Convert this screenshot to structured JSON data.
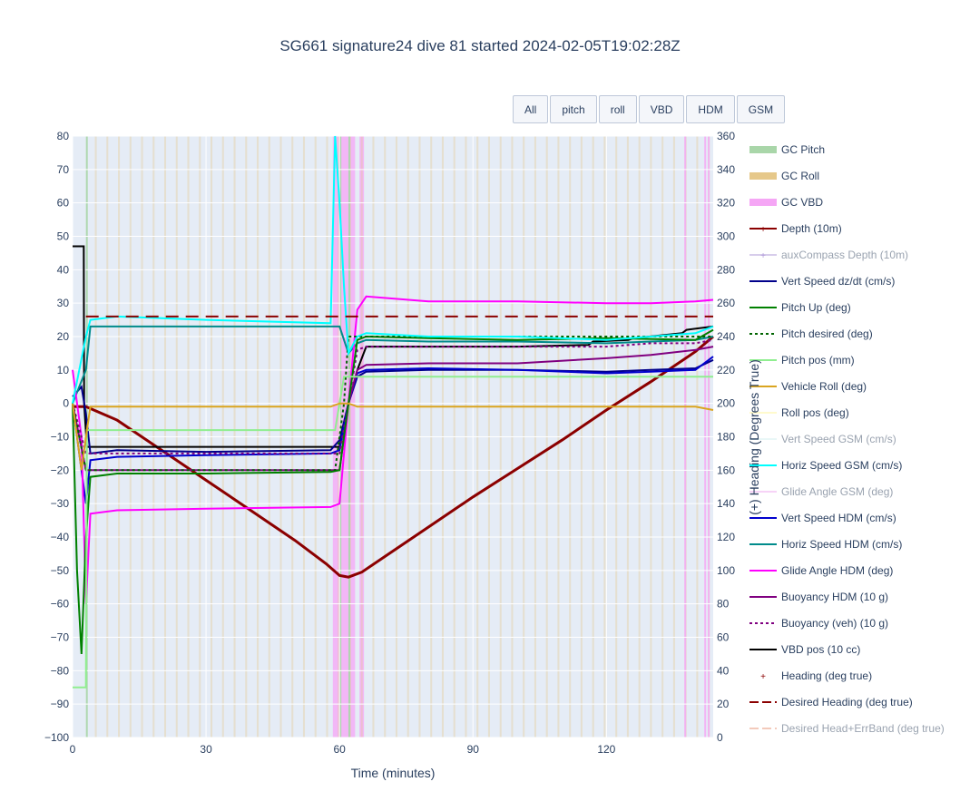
{
  "chart_title": "SG661 signature24 dive 81 started 2024-02-05T19:02:28Z",
  "buttons": [
    "All",
    "pitch",
    "roll",
    "VBD",
    "HDM",
    "GSM"
  ],
  "chart_data": {
    "type": "line",
    "title": "SG661 signature24 dive 81 started 2024-02-05T19:02:28Z",
    "xlabel": "Time (minutes)",
    "ylabel": "",
    "y2label": "(+) Heading (Degrees True)",
    "xlim": [
      0,
      144
    ],
    "ylim": [
      -100,
      80
    ],
    "y2lim": [
      0,
      360
    ],
    "xticks": [
      0,
      30,
      60,
      90,
      120
    ],
    "yticks": [
      -100,
      -90,
      -80,
      -70,
      -60,
      -50,
      -40,
      -30,
      -20,
      -10,
      0,
      10,
      20,
      30,
      40,
      50,
      60,
      70,
      80
    ],
    "y2ticks": [
      0,
      20,
      40,
      60,
      80,
      100,
      120,
      140,
      160,
      180,
      200,
      220,
      240,
      260,
      280,
      300,
      320,
      340,
      360
    ],
    "grid": true,
    "legend_position": "right",
    "legend": [
      {
        "name": "GC Pitch",
        "color": "#a9d6a9",
        "style": "band"
      },
      {
        "name": "GC Roll",
        "color": "#e6c88a",
        "style": "band"
      },
      {
        "name": "GC VBD",
        "color": "#f5a6f5",
        "style": "band"
      },
      {
        "name": "Depth (10m)",
        "color": "#8b0000",
        "style": "line-marker"
      },
      {
        "name": "auxCompass Depth (10m)",
        "color": "#b19cd9",
        "style": "line-marker",
        "hidden": true
      },
      {
        "name": "Vert Speed dz/dt (cm/s)",
        "color": "#00008b",
        "style": "line"
      },
      {
        "name": "Pitch Up (deg)",
        "color": "#008000",
        "style": "line"
      },
      {
        "name": "Pitch desired (deg)",
        "color": "#006400",
        "style": "dot"
      },
      {
        "name": "Pitch pos (mm)",
        "color": "#90ee90",
        "style": "line"
      },
      {
        "name": "Vehicle Roll (deg)",
        "color": "#daa520",
        "style": "line"
      },
      {
        "name": "Roll pos (deg)",
        "color": "#fffacd",
        "style": "line"
      },
      {
        "name": "Vert Speed GSM (cm/s)",
        "color": "#d4f0f0",
        "style": "line",
        "hidden": true
      },
      {
        "name": "Horiz Speed GSM (cm/s)",
        "color": "#00ffff",
        "style": "line"
      },
      {
        "name": "Glide Angle GSM (deg)",
        "color": "#f0a8f0",
        "style": "line",
        "hidden": true
      },
      {
        "name": "Vert Speed HDM (cm/s)",
        "color": "#0000cd",
        "style": "line"
      },
      {
        "name": "Horiz Speed HDM (cm/s)",
        "color": "#008b8b",
        "style": "line"
      },
      {
        "name": "Glide Angle HDM (deg)",
        "color": "#ff00ff",
        "style": "line"
      },
      {
        "name": "Buoyancy HDM (10 g)",
        "color": "#800080",
        "style": "line"
      },
      {
        "name": "Buoyancy (veh) (10 g)",
        "color": "#800080",
        "style": "dot"
      },
      {
        "name": "VBD pos (10 cc)",
        "color": "#000000",
        "style": "line"
      },
      {
        "name": "Heading (deg true)",
        "color": "#8b0000",
        "style": "marker"
      },
      {
        "name": "Desired Heading (deg true)",
        "color": "#8b0000",
        "style": "dash"
      },
      {
        "name": "Desired Head+ErrBand (deg true)",
        "color": "#e9967a",
        "style": "dash",
        "hidden": true
      }
    ],
    "series": [
      {
        "name": "Depth (10m)",
        "x": [
          0,
          3,
          10,
          20,
          30,
          40,
          50,
          57,
          60,
          62,
          65,
          70,
          80,
          90,
          100,
          110,
          120,
          130,
          140,
          144
        ],
        "y": [
          -1,
          -1,
          -5,
          -14,
          -23,
          -32,
          -41,
          -48,
          -51.5,
          -52,
          -50.5,
          -46,
          -37,
          -28,
          -19.5,
          -11,
          -2,
          6.5,
          15.5,
          20
        ]
      },
      {
        "name": "VBD pos (10 cc)",
        "x": [
          0,
          2.5,
          2.6,
          3.2,
          10,
          58,
          60,
          62,
          64,
          66,
          100,
          116,
          117,
          125,
          126,
          137,
          138,
          144
        ],
        "y": [
          47,
          47,
          0,
          -13,
          -13,
          -13,
          -13,
          0,
          10,
          17,
          17,
          17.5,
          18.5,
          19,
          19.5,
          21,
          22,
          23
        ]
      },
      {
        "name": "Vert Speed dz/dt (cm/s)",
        "x": [
          0,
          2,
          3,
          4,
          10,
          30,
          58,
          60,
          62,
          64,
          66,
          80,
          100,
          120,
          130,
          140,
          144
        ],
        "y": [
          2,
          5,
          -3,
          -15,
          -14,
          -14.5,
          -14,
          -11,
          0,
          8,
          9.5,
          10,
          10,
          9.5,
          10,
          10.5,
          13
        ]
      },
      {
        "name": "Horiz Speed HDM (cm/s)",
        "x": [
          0,
          3,
          4,
          10,
          30,
          58,
          60,
          62,
          64,
          66,
          80,
          100,
          120,
          130,
          140,
          144
        ],
        "y": [
          0,
          10,
          23,
          23,
          23,
          23,
          23,
          15,
          18,
          19,
          18.5,
          18.5,
          18,
          18.5,
          19,
          20
        ]
      },
      {
        "name": "Vert Speed HDM (cm/s)",
        "x": [
          0,
          3,
          4,
          10,
          30,
          58,
          60,
          62,
          64,
          66,
          80,
          100,
          120,
          130,
          140,
          144
        ],
        "y": [
          0,
          -30,
          -17,
          -16,
          -15.5,
          -15,
          -14,
          0,
          9,
          10,
          10.5,
          10,
          9,
          9.5,
          10,
          14
        ]
      },
      {
        "name": "Glide Angle HDM (deg)",
        "x": [
          0,
          2,
          3,
          4,
          10,
          30,
          58,
          60,
          62,
          64,
          66,
          80,
          100,
          120,
          130,
          140,
          144
        ],
        "y": [
          10,
          -10,
          -60,
          -33,
          -32,
          -31.5,
          -31,
          -30,
          0,
          28,
          32,
          30.5,
          30.5,
          30,
          30,
          30.5,
          31
        ]
      },
      {
        "name": "Buoyancy HDM (10 g)",
        "x": [
          0,
          3,
          4,
          10,
          30,
          58,
          60,
          62,
          64,
          66,
          80,
          100,
          120,
          130,
          140,
          144
        ],
        "y": [
          0,
          -20,
          -20,
          -20,
          -20,
          -20,
          -20,
          0,
          10,
          11.5,
          12,
          12,
          13.5,
          14.5,
          16,
          17
        ]
      },
      {
        "name": "Buoyancy (veh) (10 g)",
        "x": [
          0,
          3,
          4,
          10,
          30,
          58,
          60,
          62,
          64,
          66,
          80,
          100,
          120,
          130,
          140,
          144
        ],
        "y": [
          0,
          -15,
          -15,
          -15,
          -15,
          -15,
          -15,
          0,
          16,
          17,
          17,
          17,
          17,
          18,
          18,
          19
        ]
      },
      {
        "name": "Pitch Up (deg)",
        "x": [
          0,
          1,
          2,
          3,
          4,
          10,
          30,
          58,
          60,
          62,
          64,
          66,
          80,
          100,
          120,
          140,
          144
        ],
        "y": [
          0,
          -50,
          -75,
          -40,
          -22,
          -21,
          -21,
          -20.5,
          -20,
          0,
          19,
          20,
          19.5,
          19,
          19.5,
          19,
          22
        ]
      },
      {
        "name": "Pitch desired (deg)",
        "x": [
          0,
          3,
          10,
          58,
          59,
          61,
          62,
          64,
          144
        ],
        "y": [
          0,
          -20,
          -20,
          -20,
          -20,
          0,
          20,
          20,
          20
        ]
      },
      {
        "name": "Pitch pos (mm)",
        "x": [
          0,
          3,
          3.2,
          58,
          59,
          61,
          62,
          144
        ],
        "y": [
          -85,
          -85,
          -8,
          -8,
          -8,
          8,
          8,
          8
        ]
      },
      {
        "name": "Vehicle Roll (deg)",
        "x": [
          0,
          1,
          2,
          3,
          4,
          10,
          30,
          58,
          60,
          62,
          64,
          66,
          80,
          100,
          120,
          140,
          144
        ],
        "y": [
          0,
          -10,
          -20,
          -10,
          -1,
          -1,
          -1,
          -1,
          0,
          0,
          -1,
          -1,
          -1,
          -1,
          -1,
          -1,
          -2
        ]
      },
      {
        "name": "Horiz Speed GSM (cm/s)",
        "x": [
          0,
          3,
          4,
          10,
          30,
          58,
          59,
          60,
          61,
          62,
          64,
          66,
          80,
          100,
          120,
          130,
          140,
          144
        ],
        "y": [
          0,
          20,
          25,
          26,
          25,
          24,
          80,
          60,
          35,
          15,
          20,
          21,
          20,
          20,
          19,
          20,
          21,
          23
        ]
      },
      {
        "name": "Desired Heading (deg true)",
        "x": [
          3,
          144
        ],
        "y2": [
          252,
          252
        ]
      }
    ]
  }
}
